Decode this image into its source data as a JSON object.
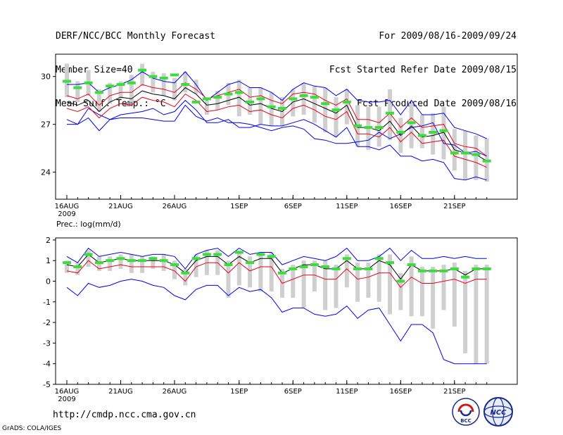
{
  "header": {
    "left": [
      "DERF/NCC/BCC Monthly Forecast",
      "Member Size=40",
      "Mean Surf. Temp.: °C"
    ],
    "right": [
      "For 2009/08/16-2009/09/24",
      "Fcst Started Refer Date 2009/08/15",
      "Fcst Produced Date 2009/08/16"
    ]
  },
  "footer": {
    "url": "http://cmdp.ncc.cma.gov.cn",
    "credit": "GrADS: COLA/IGES"
  },
  "logos": {
    "bcc": "BCC",
    "ncc": "NCC"
  },
  "colors": {
    "box": "#cfcfcf",
    "mean": "#000000",
    "spread": "#e8001e",
    "envelope": "#0000ee",
    "median": "#3ddc3d"
  },
  "chart_data": [
    {
      "type": "line",
      "title": "Mean Surf. Temp.: °C",
      "x": [
        "08-16",
        "08-17",
        "08-18",
        "08-19",
        "08-20",
        "08-21",
        "08-22",
        "08-23",
        "08-24",
        "08-25",
        "08-26",
        "08-27",
        "08-28",
        "08-29",
        "08-30",
        "08-31",
        "09-01",
        "09-02",
        "09-03",
        "09-04",
        "09-05",
        "09-06",
        "09-07",
        "09-08",
        "09-09",
        "09-10",
        "09-11",
        "09-12",
        "09-13",
        "09-14",
        "09-15",
        "09-16",
        "09-17",
        "09-18",
        "09-19",
        "09-20",
        "09-21",
        "09-22",
        "09-23",
        "09-24"
      ],
      "xticks": [
        {
          "i": 0,
          "label": "16AUG",
          "sub": "2009"
        },
        {
          "i": 5,
          "label": "21AUG"
        },
        {
          "i": 10,
          "label": "26AUG"
        },
        {
          "i": 16,
          "label": "1SEP"
        },
        {
          "i": 21,
          "label": "6SEP"
        },
        {
          "i": 26,
          "label": "11SEP"
        },
        {
          "i": 31,
          "label": "16SEP"
        },
        {
          "i": 36,
          "label": "21SEP"
        }
      ],
      "yticks": [
        24,
        27,
        30
      ],
      "ylim": [
        22.3,
        31.4
      ],
      "series": [
        {
          "name": "max",
          "values": [
            27.0,
            27.0,
            28.0,
            27.6,
            27.3,
            27.4,
            27.4,
            27.4,
            27.3,
            27.2,
            27.2,
            28.2,
            27.5,
            27.2,
            27.4,
            27.1,
            27.1,
            27.0,
            26.8,
            26.6,
            26.8,
            26.9,
            26.7,
            26.1,
            26.0,
            25.8,
            25.8,
            25.9,
            26.0,
            26.5,
            26.1,
            26.4,
            26.8,
            26.9,
            27.1,
            25.8,
            25.7,
            25.2,
            25.3,
            25.0
          ]
        },
        {
          "name": "upper",
          "values": [
            29.5,
            29.5,
            29.6,
            29.0,
            29.3,
            29.5,
            29.8,
            30.3,
            29.9,
            29.7,
            29.6,
            30.3,
            29.5,
            28.5,
            29.0,
            29.5,
            29.7,
            29.3,
            29.3,
            29.0,
            28.5,
            29.2,
            29.6,
            29.4,
            29.3,
            28.8,
            29.2,
            28.5,
            28.4,
            28.4,
            28.5,
            27.6,
            28.5,
            27.6,
            27.6,
            27.7,
            26.8,
            26.6,
            26.4,
            26.1
          ]
        },
        {
          "name": "spread_hi",
          "values": [
            28.8,
            28.6,
            28.9,
            28.2,
            28.8,
            29.0,
            29.0,
            29.5,
            29.3,
            29.2,
            29.0,
            29.6,
            29.2,
            28.6,
            28.8,
            29.0,
            29.2,
            28.7,
            28.8,
            28.5,
            28.3,
            28.9,
            29.0,
            28.9,
            28.5,
            28.2,
            28.6,
            27.3,
            27.3,
            27.1,
            27.7,
            26.8,
            27.4,
            26.8,
            26.9,
            27.0,
            25.8,
            25.6,
            25.5,
            25.0
          ]
        },
        {
          "name": "mean",
          "values": [
            28.4,
            28.2,
            28.5,
            27.8,
            28.4,
            28.7,
            28.6,
            29.1,
            28.9,
            28.8,
            28.6,
            29.3,
            28.9,
            28.2,
            28.3,
            28.5,
            28.7,
            28.2,
            28.3,
            28.0,
            27.8,
            28.4,
            28.6,
            28.3,
            28.0,
            27.7,
            28.2,
            26.8,
            26.8,
            26.6,
            27.2,
            26.3,
            26.9,
            26.2,
            26.3,
            26.5,
            25.4,
            25.2,
            25.1,
            24.7
          ]
        },
        {
          "name": "spread_lo",
          "values": [
            28.0,
            27.8,
            28.1,
            27.4,
            28.0,
            28.3,
            28.2,
            28.7,
            28.5,
            28.4,
            28.1,
            28.9,
            28.5,
            27.8,
            27.9,
            28.1,
            28.2,
            27.8,
            27.9,
            27.6,
            27.4,
            28.0,
            28.2,
            27.9,
            27.5,
            27.3,
            27.8,
            26.4,
            26.4,
            26.2,
            26.8,
            25.9,
            26.5,
            25.8,
            25.9,
            26.0,
            25.0,
            24.8,
            24.6,
            24.3
          ]
        },
        {
          "name": "min",
          "values": [
            27.3,
            27.0,
            27.4,
            26.6,
            27.3,
            27.6,
            27.7,
            27.8,
            28.0,
            27.6,
            27.8,
            28.5,
            27.9,
            27.1,
            27.1,
            27.3,
            26.8,
            26.8,
            27.0,
            26.9,
            26.9,
            27.1,
            27.3,
            27.0,
            26.6,
            26.2,
            26.8,
            25.6,
            25.6,
            25.4,
            25.7,
            25.0,
            25.0,
            24.7,
            24.8,
            24.6,
            23.6,
            23.5,
            23.7,
            23.5
          ]
        },
        {
          "name": "box_top",
          "values": [
            30.8,
            29.7,
            30.4,
            29.2,
            29.6,
            29.7,
            30.1,
            30.8,
            30.3,
            30.2,
            29.9,
            30.3,
            29.8,
            28.5,
            29.1,
            29.6,
            29.8,
            29.3,
            29.3,
            29.0,
            28.7,
            29.2,
            29.6,
            29.4,
            29.3,
            28.7,
            29.2,
            28.2,
            28.1,
            28.1,
            29.2,
            27.4,
            28.3,
            27.6,
            27.7,
            28.1,
            26.7,
            26.6,
            26.3,
            26.1
          ]
        },
        {
          "name": "box_bottom",
          "values": [
            28.7,
            28.4,
            28.8,
            27.8,
            28.3,
            28.6,
            28.4,
            29.4,
            29.0,
            28.8,
            28.5,
            29.0,
            28.9,
            27.6,
            27.9,
            28.2,
            27.5,
            27.6,
            27.0,
            26.9,
            26.9,
            27.5,
            27.6,
            27.1,
            26.5,
            26.2,
            27.0,
            25.6,
            25.4,
            25.6,
            26.0,
            25.2,
            25.5,
            25.5,
            25.1,
            24.8,
            24.1,
            23.5,
            23.5,
            23.4
          ]
        },
        {
          "name": "median",
          "values": [
            29.7,
            29.3,
            29.6,
            29.0,
            29.4,
            29.5,
            29.6,
            30.4,
            30.0,
            29.9,
            30.1,
            29.5,
            28.4,
            28.6,
            28.7,
            28.9,
            29.0,
            28.4,
            28.6,
            28.1,
            28.0,
            28.6,
            28.8,
            28.7,
            28.3,
            27.9,
            28.4,
            26.9,
            26.8,
            26.8,
            27.7,
            26.5,
            27.1,
            26.3,
            26.5,
            26.6,
            25.2,
            25.2,
            25.1,
            24.7
          ]
        }
      ]
    },
    {
      "type": "line",
      "title": "Prec.: log(mm/d)",
      "x": [
        "08-16",
        "08-17",
        "08-18",
        "08-19",
        "08-20",
        "08-21",
        "08-22",
        "08-23",
        "08-24",
        "08-25",
        "08-26",
        "08-27",
        "08-28",
        "08-29",
        "08-30",
        "08-31",
        "09-01",
        "09-02",
        "09-03",
        "09-04",
        "09-05",
        "09-06",
        "09-07",
        "09-08",
        "09-09",
        "09-10",
        "09-11",
        "09-12",
        "09-13",
        "09-14",
        "09-15",
        "09-16",
        "09-17",
        "09-18",
        "09-19",
        "09-20",
        "09-21",
        "09-22",
        "09-23",
        "09-24"
      ],
      "xticks": [
        {
          "i": 0,
          "label": "16AUG",
          "sub": "2009"
        },
        {
          "i": 5,
          "label": "21AUG"
        },
        {
          "i": 10,
          "label": "26AUG"
        },
        {
          "i": 16,
          "label": "1SEP"
        },
        {
          "i": 21,
          "label": "6SEP"
        },
        {
          "i": 26,
          "label": "11SEP"
        },
        {
          "i": 31,
          "label": "16SEP"
        },
        {
          "i": 36,
          "label": "21SEP"
        }
      ],
      "yticks": [
        -5,
        -4,
        -3,
        -2,
        -1,
        0,
        1,
        2
      ],
      "ylim": [
        -5,
        2.1
      ],
      "series": [
        {
          "name": "max",
          "values": [
            1.2,
            0.9,
            1.6,
            1.2,
            1.3,
            1.4,
            1.3,
            1.2,
            1.3,
            1.3,
            1.2,
            0.6,
            1.3,
            1.5,
            1.6,
            1.2,
            1.6,
            1.3,
            1.4,
            1.4,
            0.8,
            1.0,
            1.2,
            1.1,
            1.0,
            1.2,
            1.6,
            1.0,
            1.0,
            1.2,
            1.6,
            1.0,
            1.5,
            1.1,
            1.1,
            1.2,
            1.1,
            1.2,
            1.1,
            1.1
          ]
        },
        {
          "name": "mean",
          "values": [
            0.8,
            0.7,
            1.3,
            0.9,
            1.0,
            1.1,
            1.0,
            1.0,
            1.0,
            1.0,
            0.8,
            0.4,
            1.0,
            1.2,
            1.2,
            0.8,
            1.2,
            0.9,
            1.1,
            1.1,
            0.4,
            0.6,
            0.8,
            0.8,
            0.6,
            0.6,
            1.0,
            0.6,
            0.6,
            1.0,
            0.8,
            0.1,
            0.8,
            0.5,
            0.5,
            0.5,
            0.6,
            0.3,
            0.6,
            0.6
          ]
        },
        {
          "name": "spread_lo",
          "values": [
            0.5,
            0.4,
            1.0,
            0.6,
            0.7,
            0.8,
            0.7,
            0.7,
            0.7,
            0.7,
            0.5,
            0.0,
            0.7,
            0.9,
            0.9,
            0.4,
            0.9,
            0.5,
            0.7,
            0.7,
            -0.1,
            0.1,
            0.3,
            0.3,
            0.1,
            0.1,
            0.6,
            0.1,
            0.2,
            0.4,
            0.4,
            -0.3,
            0.2,
            -0.1,
            -0.1,
            0.0,
            0.1,
            -0.1,
            0.1,
            0.1
          ]
        },
        {
          "name": "min",
          "values": [
            -0.3,
            -0.7,
            -0.1,
            -0.3,
            -0.2,
            0.0,
            0.1,
            0.0,
            -0.2,
            -0.3,
            -0.7,
            -0.9,
            -0.4,
            -0.2,
            -0.2,
            -0.7,
            -0.3,
            -0.5,
            -0.4,
            -0.8,
            -1.5,
            -1.3,
            -1.3,
            -1.6,
            -1.7,
            -1.6,
            -1.2,
            -1.8,
            -1.4,
            -1.3,
            -2.1,
            -2.9,
            -2.1,
            -2.1,
            -2.5,
            -3.8,
            -4.0,
            -4.0,
            -4.0,
            -4.0
          ]
        },
        {
          "name": "box_top",
          "values": [
            1.0,
            0.9,
            1.5,
            1.2,
            1.2,
            1.3,
            1.3,
            1.2,
            1.2,
            1.3,
            1.0,
            0.6,
            1.3,
            1.5,
            1.5,
            1.0,
            1.5,
            1.2,
            1.4,
            1.4,
            0.6,
            0.8,
            1.0,
            1.0,
            1.0,
            0.8,
            1.3,
            0.9,
            0.9,
            1.3,
            1.3,
            0.4,
            1.2,
            0.7,
            0.7,
            0.8,
            0.9,
            0.5,
            0.8,
            0.8
          ]
        },
        {
          "name": "box_bottom",
          "values": [
            0.4,
            0.3,
            0.7,
            0.5,
            0.5,
            0.6,
            0.4,
            0.4,
            0.6,
            0.5,
            0.1,
            -0.2,
            0.2,
            0.3,
            0.3,
            -0.8,
            -0.2,
            -0.3,
            -0.5,
            -0.5,
            -0.8,
            -0.8,
            -1.3,
            -0.5,
            -1.4,
            -1.3,
            -0.3,
            -1.0,
            -0.8,
            -1.0,
            -1.6,
            -1.4,
            -1.7,
            -1.7,
            -2.3,
            -1.4,
            -2.2,
            -3.5,
            -4.0,
            -4.0
          ]
        },
        {
          "name": "median",
          "values": [
            0.9,
            0.7,
            1.3,
            0.9,
            1.0,
            1.1,
            1.0,
            1.0,
            1.1,
            1.0,
            0.8,
            0.4,
            1.1,
            1.3,
            1.3,
            0.8,
            1.4,
            0.9,
            1.3,
            1.2,
            0.4,
            0.6,
            0.7,
            0.8,
            0.7,
            0.6,
            1.1,
            0.6,
            0.6,
            1.1,
            0.9,
            0.0,
            0.8,
            0.5,
            0.5,
            0.5,
            0.6,
            0.2,
            0.6,
            0.6
          ]
        }
      ]
    }
  ]
}
